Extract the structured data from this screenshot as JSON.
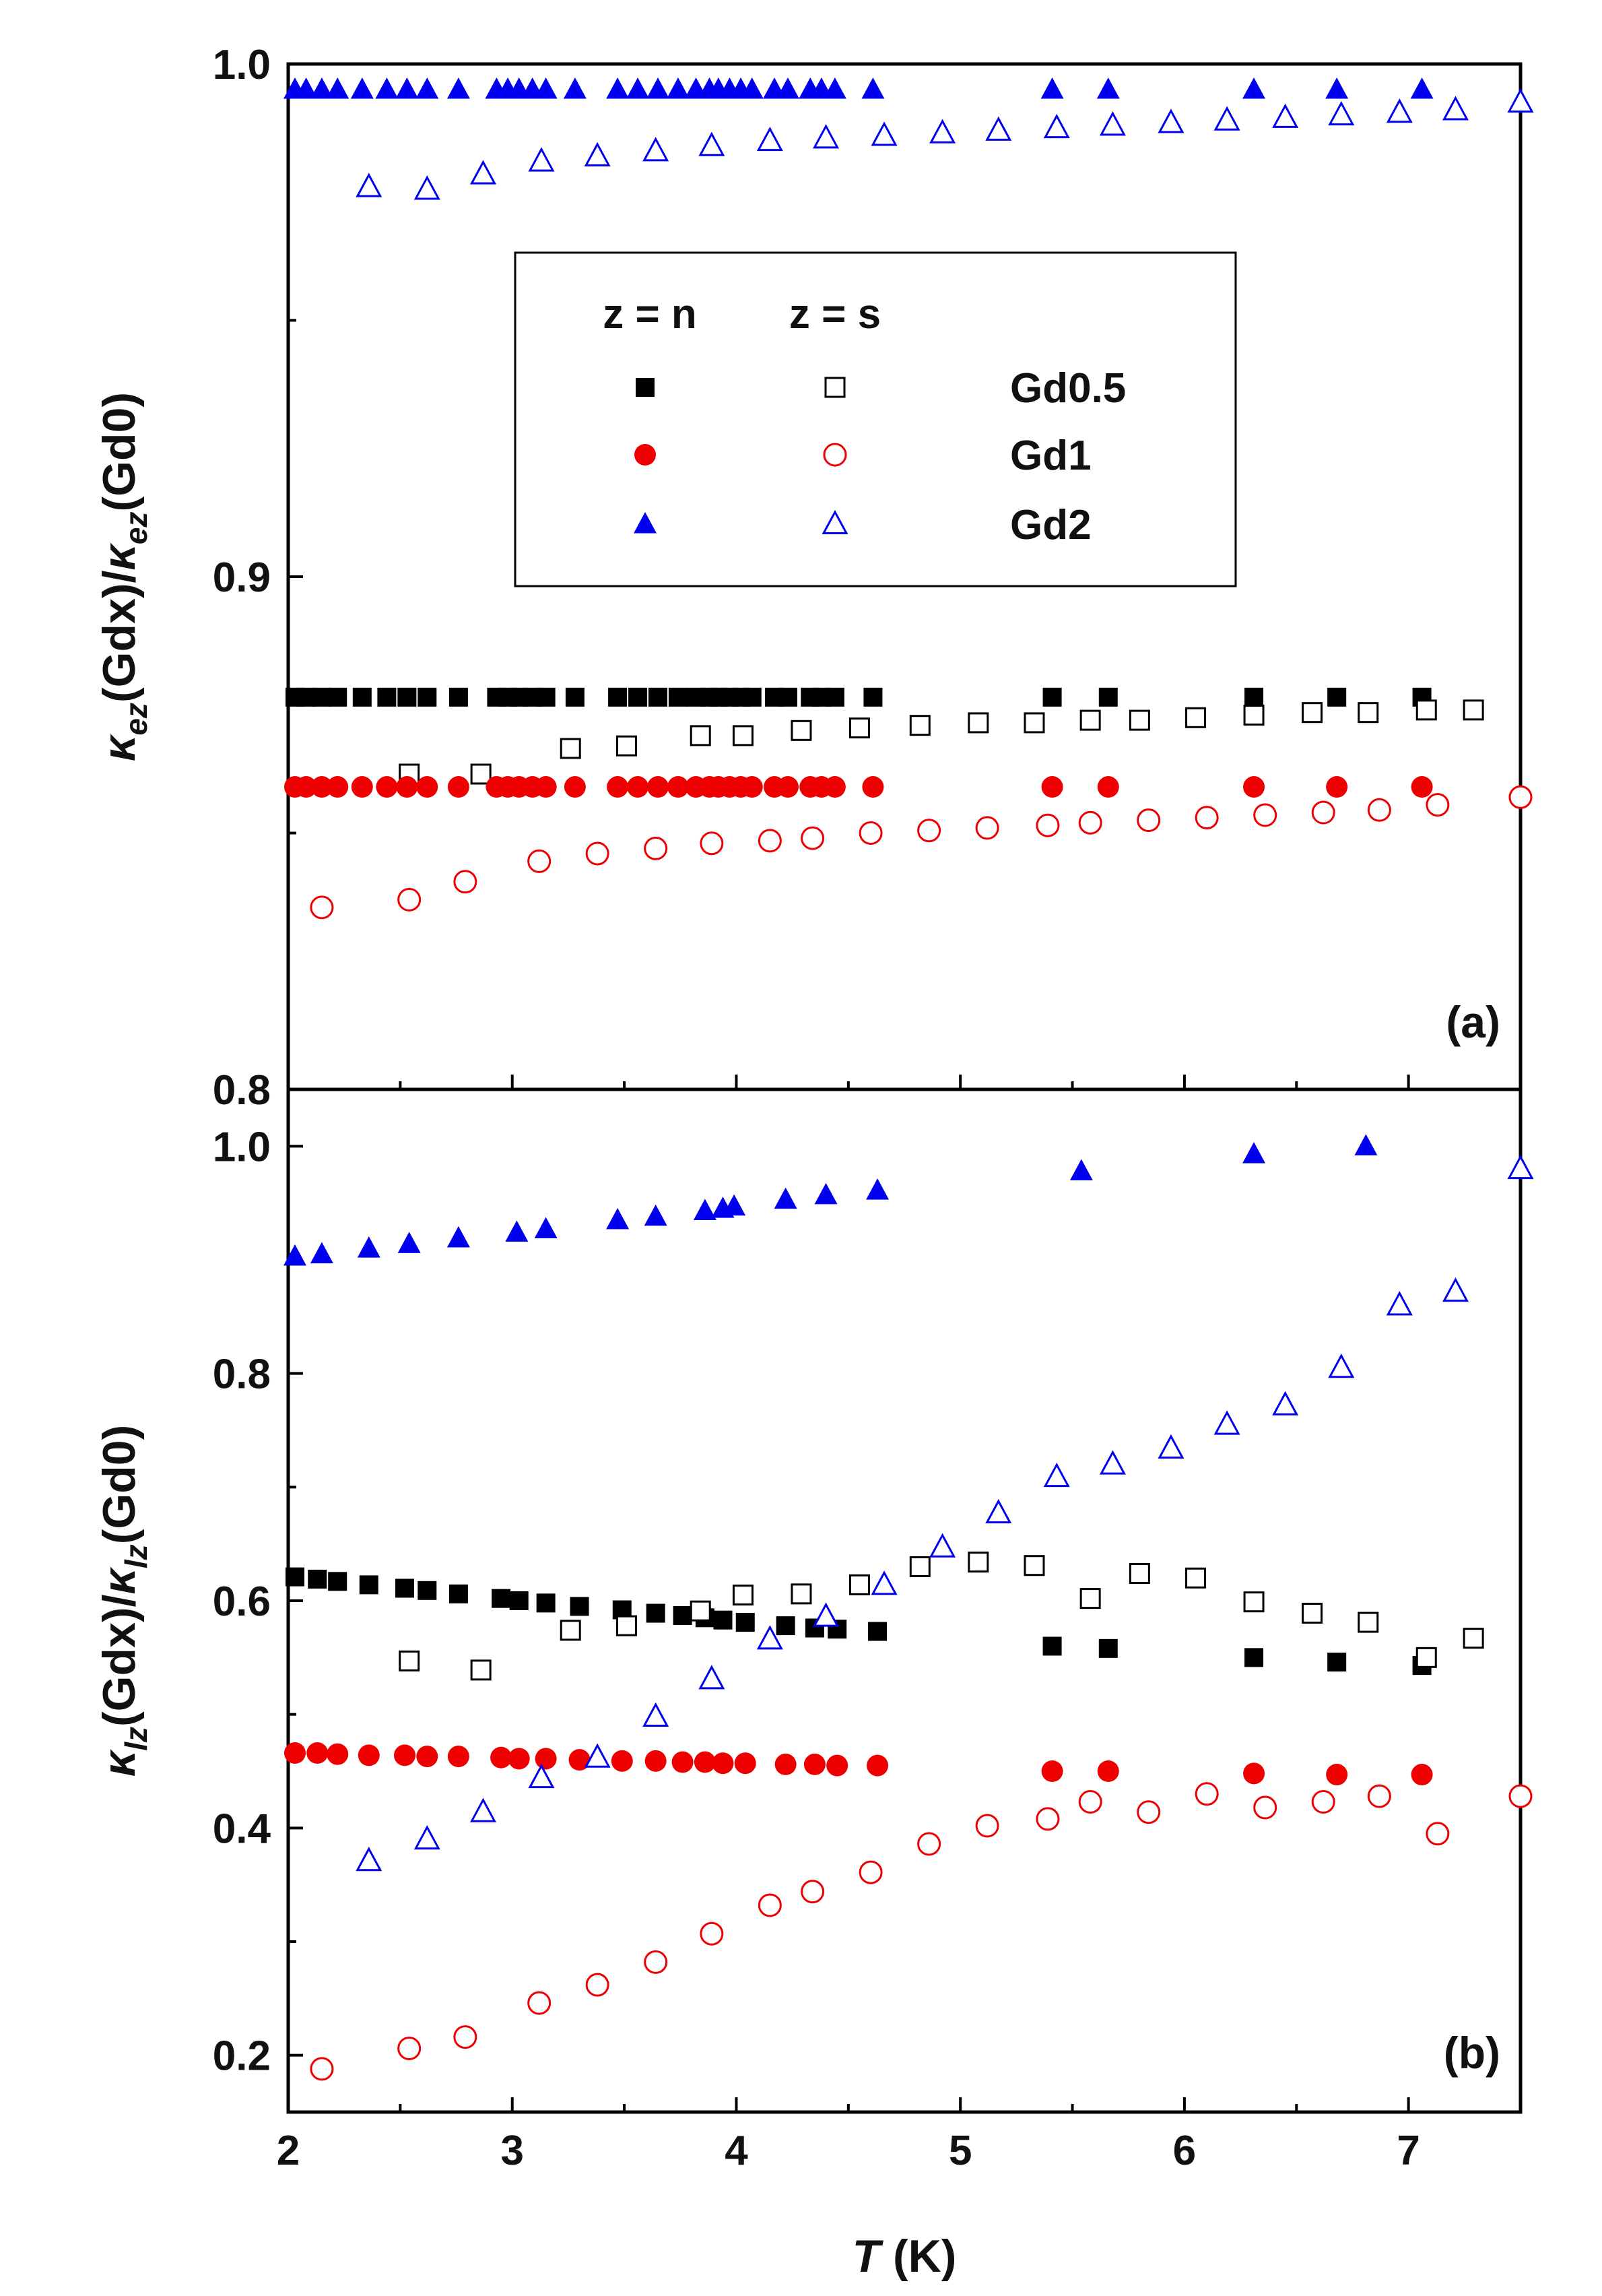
{
  "colors": {
    "Gd0.5": "#000000",
    "Gd1": "#ee0000",
    "Gd2": "#0000ee"
  },
  "chart_data": [
    {
      "type": "scatter",
      "panel_label": "(a)",
      "ylabel_parts": [
        "κ",
        "ez",
        "(Gdx)/",
        "κ",
        "ez",
        "(Gd0)"
      ],
      "xlabel_parts": [
        "T",
        " (K)"
      ],
      "xlim": [
        2,
        7.5
      ],
      "ylim": [
        0.8,
        1.0
      ],
      "x_ticks": [
        2,
        3,
        4,
        5,
        6,
        7
      ],
      "y_ticks": [
        0.8,
        0.9,
        1.0
      ],
      "y_tick_labels": [
        "0.8",
        "0.9",
        "1.0"
      ],
      "legend": {
        "position": "upper-center",
        "header_n": "z = n",
        "header_s": "z = s",
        "entries": [
          "Gd0.5",
          "Gd1",
          "Gd2"
        ]
      },
      "series": [
        {
          "name": "Gd0.5",
          "z": "n",
          "marker": "square",
          "filled": true,
          "x": [
            2.03,
            2.08,
            2.15,
            2.22,
            2.33,
            2.44,
            2.53,
            2.62,
            2.76,
            2.93,
            2.98,
            3.03,
            3.09,
            3.15,
            3.28,
            3.47,
            3.56,
            3.65,
            3.74,
            3.82,
            3.88,
            3.92,
            3.97,
            4.02,
            4.07,
            4.17,
            4.23,
            4.33,
            4.38,
            4.44,
            4.61,
            5.41,
            5.66,
            6.31,
            6.68,
            7.06
          ],
          "y": [
            0.8765,
            0.8765,
            0.8765,
            0.8765,
            0.8765,
            0.8765,
            0.8765,
            0.8765,
            0.8765,
            0.8765,
            0.8765,
            0.8765,
            0.8765,
            0.8765,
            0.8765,
            0.8765,
            0.8765,
            0.8765,
            0.8765,
            0.8765,
            0.8765,
            0.8765,
            0.8765,
            0.8765,
            0.8765,
            0.8765,
            0.8765,
            0.8765,
            0.8765,
            0.8765,
            0.8765,
            0.8765,
            0.8765,
            0.8765,
            0.8765,
            0.8765
          ]
        },
        {
          "name": "Gd0.5",
          "z": "s",
          "marker": "square",
          "filled": false,
          "x": [
            2.54,
            2.86,
            3.26,
            3.51,
            3.84,
            4.03,
            4.29,
            4.55,
            4.82,
            5.08,
            5.33,
            5.58,
            5.8,
            6.05,
            6.31,
            6.57,
            6.82,
            7.08,
            7.29
          ],
          "y": [
            0.8615,
            0.8615,
            0.8665,
            0.867,
            0.869,
            0.869,
            0.87,
            0.8705,
            0.871,
            0.8715,
            0.8715,
            0.872,
            0.872,
            0.8725,
            0.873,
            0.8735,
            0.8735,
            0.874,
            0.874
          ]
        },
        {
          "name": "Gd1",
          "z": "n",
          "marker": "circle",
          "filled": true,
          "x": [
            2.03,
            2.08,
            2.15,
            2.22,
            2.33,
            2.44,
            2.53,
            2.62,
            2.76,
            2.93,
            2.98,
            3.03,
            3.09,
            3.15,
            3.28,
            3.47,
            3.56,
            3.65,
            3.74,
            3.82,
            3.88,
            3.92,
            3.97,
            4.02,
            4.07,
            4.17,
            4.23,
            4.33,
            4.38,
            4.44,
            4.61,
            5.41,
            5.66,
            6.31,
            6.68,
            7.06
          ],
          "y": [
            0.859,
            0.859,
            0.859,
            0.859,
            0.859,
            0.859,
            0.859,
            0.859,
            0.859,
            0.859,
            0.859,
            0.859,
            0.859,
            0.859,
            0.859,
            0.859,
            0.859,
            0.859,
            0.859,
            0.859,
            0.859,
            0.859,
            0.859,
            0.859,
            0.859,
            0.859,
            0.859,
            0.859,
            0.859,
            0.859,
            0.859,
            0.859,
            0.859,
            0.859,
            0.859,
            0.859
          ]
        },
        {
          "name": "Gd1",
          "z": "s",
          "marker": "circle",
          "filled": false,
          "x": [
            2.15,
            2.54,
            2.79,
            3.12,
            3.38,
            3.64,
            3.89,
            4.15,
            4.34,
            4.6,
            4.86,
            5.12,
            5.39,
            5.58,
            5.84,
            6.1,
            6.36,
            6.62,
            6.87,
            7.13,
            7.5
          ],
          "y": [
            0.8355,
            0.837,
            0.8405,
            0.8445,
            0.846,
            0.847,
            0.848,
            0.8485,
            0.849,
            0.85,
            0.8505,
            0.851,
            0.8515,
            0.852,
            0.8525,
            0.853,
            0.8535,
            0.854,
            0.8545,
            0.8555,
            0.857
          ]
        },
        {
          "name": "Gd2",
          "z": "n",
          "marker": "triangle",
          "filled": true,
          "x": [
            2.03,
            2.08,
            2.15,
            2.22,
            2.33,
            2.44,
            2.53,
            2.62,
            2.76,
            2.93,
            2.98,
            3.03,
            3.09,
            3.15,
            3.28,
            3.47,
            3.56,
            3.65,
            3.74,
            3.82,
            3.88,
            3.92,
            3.97,
            4.02,
            4.07,
            4.17,
            4.23,
            4.33,
            4.38,
            4.44,
            4.61,
            5.41,
            5.66,
            6.31,
            6.68,
            7.06
          ],
          "y": [
            0.995,
            0.995,
            0.995,
            0.995,
            0.995,
            0.995,
            0.995,
            0.995,
            0.995,
            0.995,
            0.995,
            0.995,
            0.995,
            0.995,
            0.995,
            0.995,
            0.995,
            0.995,
            0.995,
            0.995,
            0.995,
            0.995,
            0.995,
            0.995,
            0.995,
            0.995,
            0.995,
            0.995,
            0.995,
            0.995,
            0.995,
            0.995,
            0.995,
            0.995,
            0.995,
            0.995
          ]
        },
        {
          "name": "Gd2",
          "z": "s",
          "marker": "triangle",
          "filled": false,
          "x": [
            2.36,
            2.62,
            2.87,
            3.13,
            3.38,
            3.64,
            3.89,
            4.15,
            4.4,
            4.66,
            4.92,
            5.17,
            5.43,
            5.68,
            5.94,
            6.19,
            6.45,
            6.7,
            6.96,
            7.21,
            7.5
          ],
          "y": [
            0.976,
            0.9755,
            0.9785,
            0.981,
            0.982,
            0.983,
            0.984,
            0.985,
            0.9855,
            0.986,
            0.9865,
            0.987,
            0.9875,
            0.988,
            0.9885,
            0.989,
            0.9895,
            0.99,
            0.9905,
            0.991,
            0.9925
          ]
        }
      ]
    },
    {
      "type": "scatter",
      "panel_label": "(b)",
      "ylabel_parts": [
        "κ",
        "lz",
        "(Gdx)/",
        "κ",
        "lz",
        "(Gd0)"
      ],
      "xlabel_parts": [
        "T",
        " (K)"
      ],
      "xlim": [
        2,
        7.5
      ],
      "ylim": [
        0.15,
        1.05
      ],
      "x_ticks": [
        2,
        3,
        4,
        5,
        6,
        7
      ],
      "x_tick_labels": [
        "2",
        "3",
        "4",
        "5",
        "6",
        "7"
      ],
      "y_ticks": [
        0.2,
        0.4,
        0.6,
        0.8,
        1.0
      ],
      "y_tick_labels": [
        "0.2",
        "0.4",
        "0.6",
        "0.8",
        "1.0"
      ],
      "series": [
        {
          "name": "Gd0.5",
          "z": "n",
          "marker": "square",
          "filled": true,
          "x": [
            2.03,
            2.13,
            2.22,
            2.36,
            2.52,
            2.62,
            2.76,
            2.95,
            3.03,
            3.15,
            3.3,
            3.49,
            3.64,
            3.76,
            3.86,
            3.94,
            4.04,
            4.22,
            4.35,
            4.45,
            4.63,
            5.41,
            5.66,
            6.31,
            6.68,
            7.06
          ],
          "y": [
            0.621,
            0.619,
            0.617,
            0.614,
            0.611,
            0.609,
            0.606,
            0.602,
            0.6,
            0.598,
            0.595,
            0.592,
            0.589,
            0.587,
            0.585,
            0.583,
            0.581,
            0.578,
            0.576,
            0.575,
            0.573,
            0.56,
            0.558,
            0.55,
            0.546,
            0.543
          ]
        },
        {
          "name": "Gd0.5",
          "z": "s",
          "marker": "square",
          "filled": false,
          "x": [
            2.54,
            2.86,
            3.26,
            3.51,
            3.84,
            4.03,
            4.29,
            4.55,
            4.82,
            5.08,
            5.33,
            5.58,
            5.8,
            6.05,
            6.31,
            6.57,
            6.82,
            7.08,
            7.29
          ],
          "y": [
            0.547,
            0.539,
            0.574,
            0.578,
            0.591,
            0.605,
            0.606,
            0.614,
            0.63,
            0.634,
            0.631,
            0.602,
            0.624,
            0.62,
            0.599,
            0.589,
            0.581,
            0.55,
            0.567
          ]
        },
        {
          "name": "Gd1",
          "z": "n",
          "marker": "circle",
          "filled": true,
          "x": [
            2.03,
            2.13,
            2.22,
            2.36,
            2.52,
            2.62,
            2.76,
            2.95,
            3.03,
            3.15,
            3.3,
            3.49,
            3.64,
            3.76,
            3.86,
            3.94,
            4.04,
            4.22,
            4.35,
            4.45,
            4.63,
            5.41,
            5.66,
            6.31,
            6.68,
            7.06
          ],
          "y": [
            0.466,
            0.466,
            0.465,
            0.464,
            0.464,
            0.463,
            0.463,
            0.462,
            0.461,
            0.461,
            0.46,
            0.459,
            0.459,
            0.458,
            0.458,
            0.457,
            0.457,
            0.456,
            0.456,
            0.455,
            0.455,
            0.45,
            0.45,
            0.448,
            0.447,
            0.447
          ]
        },
        {
          "name": "Gd1",
          "z": "s",
          "marker": "circle",
          "filled": false,
          "x": [
            2.15,
            2.54,
            2.79,
            3.12,
            3.38,
            3.64,
            3.89,
            4.15,
            4.34,
            4.6,
            4.86,
            5.12,
            5.39,
            5.58,
            5.84,
            6.1,
            6.36,
            6.62,
            6.87,
            7.13,
            7.5
          ],
          "y": [
            0.188,
            0.206,
            0.216,
            0.246,
            0.262,
            0.282,
            0.307,
            0.332,
            0.344,
            0.361,
            0.386,
            0.402,
            0.408,
            0.423,
            0.414,
            0.43,
            0.418,
            0.423,
            0.428,
            0.395,
            0.428
          ]
        },
        {
          "name": "Gd2",
          "z": "n",
          "marker": "triangle",
          "filled": true,
          "x": [
            2.03,
            2.15,
            2.36,
            2.54,
            2.76,
            3.02,
            3.15,
            3.47,
            3.64,
            3.86,
            3.94,
            3.99,
            4.22,
            4.4,
            4.63,
            5.54,
            6.31,
            6.81
          ],
          "y": [
            0.903,
            0.905,
            0.91,
            0.914,
            0.919,
            0.924,
            0.927,
            0.935,
            0.938,
            0.943,
            0.945,
            0.947,
            0.953,
            0.957,
            0.961,
            0.978,
            0.993,
            1.0
          ]
        },
        {
          "name": "Gd2",
          "z": "s",
          "marker": "triangle",
          "filled": false,
          "x": [
            2.36,
            2.62,
            2.87,
            3.13,
            3.38,
            3.64,
            3.89,
            4.15,
            4.4,
            4.66,
            4.92,
            5.17,
            5.43,
            5.68,
            5.94,
            6.19,
            6.45,
            6.7,
            6.96,
            7.21,
            7.5
          ],
          "y": [
            0.371,
            0.39,
            0.414,
            0.444,
            0.462,
            0.498,
            0.531,
            0.566,
            0.586,
            0.614,
            0.647,
            0.677,
            0.709,
            0.72,
            0.734,
            0.755,
            0.772,
            0.805,
            0.86,
            0.872,
            0.98
          ]
        }
      ]
    }
  ]
}
